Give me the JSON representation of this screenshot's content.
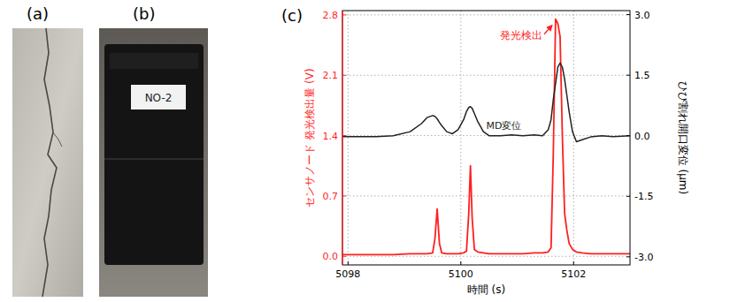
{
  "panels": {
    "a": {
      "label": "(a)"
    },
    "b": {
      "label": "(b)",
      "box_label": "NO-2"
    }
  },
  "chart_data": {
    "type": "line",
    "panel_label": "(c)",
    "x_label": "時間 (s)",
    "y_label": "センサノード 発光検出量 (V)",
    "y2_label": "ひび割れ開口変位 (μm)",
    "grid": true,
    "x": [
      5097.9,
      5098.2,
      5098.5,
      5098.8,
      5099.1,
      5099.3,
      5099.4,
      5099.5,
      5099.54,
      5099.58,
      5099.62,
      5099.66,
      5099.75,
      5099.85,
      5099.95,
      5100.05,
      5100.1,
      5100.14,
      5100.17,
      5100.2,
      5100.24,
      5100.3,
      5100.4,
      5100.5,
      5100.7,
      5100.9,
      5101.1,
      5101.3,
      5101.45,
      5101.55,
      5101.6,
      5101.64,
      5101.68,
      5101.72,
      5101.76,
      5101.8,
      5101.84,
      5101.88,
      5101.92,
      5101.98,
      5102.05,
      5102.15,
      5102.3,
      5102.5,
      5102.7,
      5103.0
    ],
    "xlim": [
      5097.9,
      5103.0
    ],
    "xticks": [
      5098,
      5100,
      5102
    ],
    "ylim": [
      -0.1,
      2.85
    ],
    "yticks": [
      {
        "value": 0,
        "label": "0.0"
      },
      {
        "value": 0.7,
        "label": "0.7"
      },
      {
        "value": 1.4,
        "label": "1.4"
      },
      {
        "value": 2.1,
        "label": "2.1"
      },
      {
        "value": 2.8,
        "label": "2.8"
      }
    ],
    "y2lim": [
      -3.2,
      3.1
    ],
    "y2ticks": [
      {
        "value": -3,
        "label": "-3.0"
      },
      {
        "value": -1.5,
        "label": "-1.5"
      },
      {
        "value": 0,
        "label": "0.0"
      },
      {
        "value": 1.5,
        "label": "1.5"
      },
      {
        "value": 3,
        "label": "3.0"
      }
    ],
    "series": [
      {
        "color": "#ff1f1f",
        "annotation": "発光検出",
        "values": [
          0.02,
          0.02,
          0.02,
          0.02,
          0.03,
          0.03,
          0.03,
          0.04,
          0.2,
          0.55,
          0.15,
          0.04,
          0.03,
          0.03,
          0.03,
          0.04,
          0.06,
          0.5,
          1.05,
          0.45,
          0.08,
          0.05,
          0.04,
          0.03,
          0.03,
          0.03,
          0.03,
          0.04,
          0.04,
          0.05,
          0.1,
          1.2,
          2.75,
          2.7,
          2.55,
          1.4,
          0.5,
          0.3,
          0.15,
          0.08,
          0.05,
          0.04,
          0.03,
          0.03,
          0.03,
          0.03
        ]
      },
      {
        "color": "#222222",
        "axis": "y2",
        "annotation": "MD変位",
        "values": [
          -0.02,
          -0.02,
          -0.02,
          0.0,
          0.1,
          0.3,
          0.45,
          0.5,
          0.48,
          0.42,
          0.33,
          0.25,
          0.1,
          0.05,
          0.15,
          0.4,
          0.6,
          0.7,
          0.72,
          0.68,
          0.55,
          0.35,
          0.1,
          0.0,
          0.0,
          0.02,
          0.0,
          0.02,
          0.0,
          0.15,
          0.4,
          0.9,
          1.3,
          1.7,
          1.8,
          1.7,
          1.4,
          1.0,
          0.6,
          0.1,
          -0.15,
          -0.1,
          -0.03,
          0.0,
          -0.02,
          0.0
        ]
      }
    ]
  }
}
